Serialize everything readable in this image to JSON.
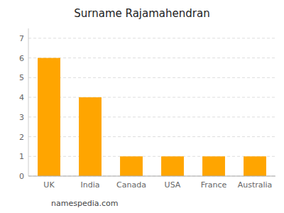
{
  "chart_data": {
    "type": "bar",
    "title": "Surname Rajamahendran",
    "categories": [
      "UK",
      "India",
      "Canada",
      "USA",
      "France",
      "Australia"
    ],
    "values": [
      6,
      4,
      1,
      1,
      1,
      1
    ],
    "color": "#FFA500",
    "ylim": [
      0,
      7.5
    ],
    "yticks": [
      0,
      1,
      2,
      3,
      4,
      5,
      6,
      7
    ],
    "grid": true,
    "annotations": [
      "namespedia.com"
    ]
  }
}
